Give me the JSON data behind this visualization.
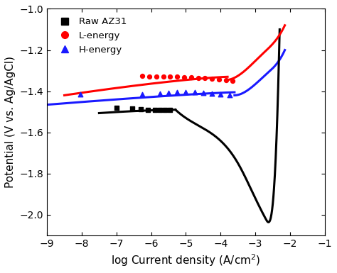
{
  "title": "",
  "xlabel": "log Current density (A/cm$^2$)",
  "ylabel": "Potential (V vs. Ag/AgCl)",
  "xlim": [
    -9,
    -1
  ],
  "ylim": [
    -2.1,
    -1.0
  ],
  "xticks": [
    -9,
    -8,
    -7,
    -6,
    -5,
    -4,
    -3,
    -2,
    -1
  ],
  "yticks": [
    -2.0,
    -1.8,
    -1.6,
    -1.4,
    -1.2,
    -1.0
  ],
  "background_color": "#ffffff",
  "raw_color": "#000000",
  "l_color": "#ff0000",
  "h_color": "#1a1aff",
  "raw_scatter_x": [
    -7.0,
    -6.55,
    -6.3,
    -6.1,
    -5.9,
    -5.75,
    -5.6,
    -5.45
  ],
  "raw_scatter_y": [
    -1.48,
    -1.485,
    -1.488,
    -1.49,
    -1.49,
    -1.49,
    -1.49,
    -1.49
  ],
  "l_scatter_x": [
    -6.25,
    -6.05,
    -5.85,
    -5.65,
    -5.45,
    -5.25,
    -5.05,
    -4.85,
    -4.65,
    -4.45,
    -4.25,
    -4.05,
    -3.85,
    -3.65
  ],
  "l_scatter_y": [
    -1.325,
    -1.328,
    -1.328,
    -1.33,
    -1.33,
    -1.33,
    -1.332,
    -1.332,
    -1.335,
    -1.337,
    -1.34,
    -1.342,
    -1.345,
    -1.348
  ],
  "h_scatter_x": [
    -8.05,
    -6.25,
    -5.75,
    -5.5,
    -5.25,
    -5.0,
    -4.75,
    -4.5,
    -4.25,
    -4.0,
    -3.75
  ],
  "h_scatter_y": [
    -1.415,
    -1.415,
    -1.41,
    -1.408,
    -1.405,
    -1.405,
    -1.405,
    -1.408,
    -1.41,
    -1.415,
    -1.42
  ]
}
